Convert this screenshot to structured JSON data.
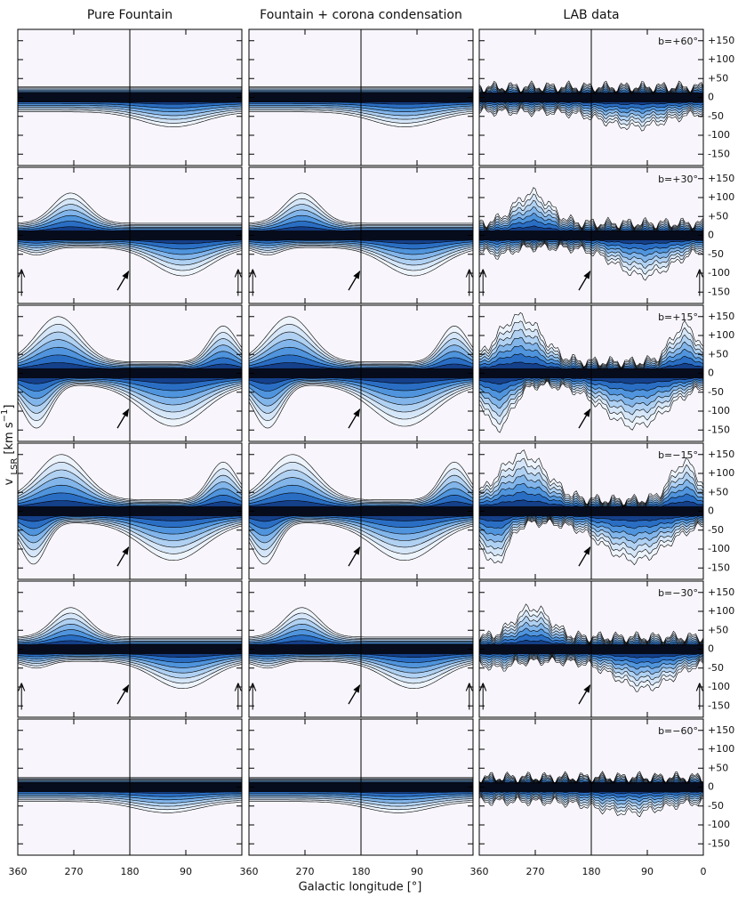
{
  "chart_data": {
    "type": "contour-grid",
    "columns": [
      "Pure Fountain",
      "Fountain + corona condensation",
      "LAB data"
    ],
    "rows": [
      "b=+60°",
      "b=+30°",
      "b=+15°",
      "b=−15°",
      "b=−30°",
      "b=−60°"
    ],
    "xlabel": "Galactic longitude [°]",
    "ylabel": {
      "symbol": "v",
      "subscript": "LSR",
      "unit": "[km s",
      "exponent": "−1",
      "close": "]"
    },
    "xlim": [
      360,
      0
    ],
    "xticks": [
      360,
      270,
      180,
      90,
      0
    ],
    "ylim": [
      -180,
      180
    ],
    "yticks": [
      {
        "value": 150,
        "label": "+150"
      },
      {
        "value": 100,
        "label": "+100"
      },
      {
        "value": 50,
        "label": "+50"
      },
      0,
      {
        "value": -50,
        "label": "-50"
      },
      {
        "value": -100,
        "label": "-100"
      },
      {
        "value": -150,
        "label": "-150"
      }
    ],
    "reference_longitude": 180
  }
}
